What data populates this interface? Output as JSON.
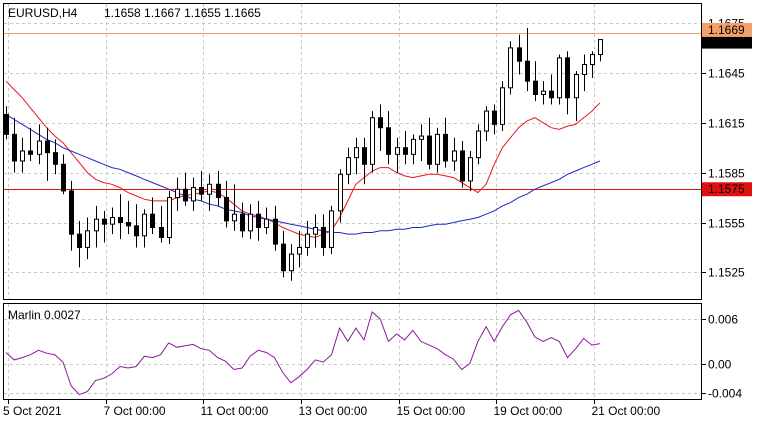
{
  "header": {
    "symbol": "EURUSD,H4",
    "ohlc": "1.1658 1.1667 1.1655 1.1665"
  },
  "indicator": {
    "label": "Marlin 0.0027"
  },
  "price_tags": {
    "current": "1.1665",
    "resistance": "1.1669",
    "support": "1.1575"
  },
  "colors": {
    "background": "#ffffff",
    "grid": "#c8c8c8",
    "candle": "#000000",
    "ma_fast": "#e8161e",
    "ma_slow": "#1b28c8",
    "resistance_line": "#f4a06a",
    "support_line": "#e01010",
    "oscillator": "#8b1a9b"
  },
  "chart_data": [
    {
      "type": "candlestick",
      "title": "EURUSD,H4",
      "y_ticks": [
        "1.1675",
        "1.1645",
        "1.1615",
        "1.1585",
        "1.1555",
        "1.1525"
      ],
      "ylim": [
        1.1509,
        1.1687
      ],
      "x_ticks": [
        "5 Oct 2021",
        "7 Oct 00:00",
        "11 Oct 00:00",
        "13 Oct 00:00",
        "15 Oct 00:00",
        "19 Oct 00:00",
        "21 Oct 00:00"
      ],
      "hlines": [
        {
          "name": "resistance",
          "value": 1.1669
        },
        {
          "name": "support",
          "value": 1.1575
        }
      ],
      "candles": [
        [
          1.162,
          1.1625,
          1.1605,
          1.1608
        ],
        [
          1.1608,
          1.1618,
          1.1585,
          1.1592
        ],
        [
          1.1592,
          1.1606,
          1.1585,
          1.1598
        ],
        [
          1.1598,
          1.1612,
          1.1592,
          1.1596
        ],
        [
          1.1596,
          1.1614,
          1.159,
          1.1604
        ],
        [
          1.1604,
          1.1612,
          1.158,
          1.1597
        ],
        [
          1.1597,
          1.1605,
          1.1584,
          1.159
        ],
        [
          1.159,
          1.1596,
          1.1572,
          1.1574
        ],
        [
          1.1574,
          1.158,
          1.1538,
          1.1548
        ],
        [
          1.1548,
          1.1556,
          1.1528,
          1.154
        ],
        [
          1.154,
          1.1558,
          1.1533,
          1.155
        ],
        [
          1.155,
          1.1565,
          1.154,
          1.1557
        ],
        [
          1.1557,
          1.1562,
          1.1543,
          1.1554
        ],
        [
          1.1554,
          1.1564,
          1.1548,
          1.1558
        ],
        [
          1.1558,
          1.1572,
          1.1545,
          1.1555
        ],
        [
          1.1555,
          1.1568,
          1.1548,
          1.1553
        ],
        [
          1.1553,
          1.1566,
          1.154,
          1.1547
        ],
        [
          1.1547,
          1.1563,
          1.154,
          1.156
        ],
        [
          1.156,
          1.157,
          1.1548,
          1.1552
        ],
        [
          1.1552,
          1.1565,
          1.1543,
          1.1546
        ],
        [
          1.1546,
          1.1574,
          1.1542,
          1.157
        ],
        [
          1.157,
          1.1582,
          1.1562,
          1.1575
        ],
        [
          1.1575,
          1.1585,
          1.1565,
          1.1568
        ],
        [
          1.1568,
          1.1582,
          1.1562,
          1.1576
        ],
        [
          1.1576,
          1.1586,
          1.1568,
          1.1572
        ],
        [
          1.1572,
          1.1584,
          1.1562,
          1.1578
        ],
        [
          1.1578,
          1.1586,
          1.1565,
          1.157
        ],
        [
          1.157,
          1.158,
          1.1552,
          1.1556
        ],
        [
          1.1556,
          1.1578,
          1.155,
          1.156
        ],
        [
          1.156,
          1.1567,
          1.1546,
          1.155
        ],
        [
          1.155,
          1.1566,
          1.1545,
          1.156
        ],
        [
          1.156,
          1.1568,
          1.1544,
          1.1552
        ],
        [
          1.1552,
          1.1564,
          1.1548,
          1.1557
        ],
        [
          1.1557,
          1.1565,
          1.1538,
          1.1542
        ],
        [
          1.1542,
          1.155,
          1.1522,
          1.1526
        ],
        [
          1.1526,
          1.1542,
          1.152,
          1.1536
        ],
        [
          1.1536,
          1.155,
          1.1528,
          1.154
        ],
        [
          1.154,
          1.1556,
          1.1535,
          1.1548
        ],
        [
          1.1548,
          1.156,
          1.154,
          1.1552
        ],
        [
          1.1552,
          1.156,
          1.1535,
          1.154
        ],
        [
          1.154,
          1.1565,
          1.1536,
          1.1562
        ],
        [
          1.1562,
          1.1587,
          1.1555,
          1.1584
        ],
        [
          1.1584,
          1.16,
          1.1578,
          1.1594
        ],
        [
          1.1594,
          1.1606,
          1.1584,
          1.16
        ],
        [
          1.16,
          1.1606,
          1.1578,
          1.159
        ],
        [
          1.159,
          1.1622,
          1.1585,
          1.1618
        ],
        [
          1.1618,
          1.1626,
          1.1598,
          1.1612
        ],
        [
          1.1612,
          1.1622,
          1.159,
          1.1596
        ],
        [
          1.1596,
          1.1606,
          1.1585,
          1.16
        ],
        [
          1.16,
          1.161,
          1.159,
          1.1596
        ],
        [
          1.1596,
          1.1608,
          1.159,
          1.1605
        ],
        [
          1.1605,
          1.1614,
          1.1592,
          1.1607
        ],
        [
          1.1607,
          1.1618,
          1.1587,
          1.159
        ],
        [
          1.159,
          1.1612,
          1.1585,
          1.1608
        ],
        [
          1.1608,
          1.1618,
          1.1588,
          1.1592
        ],
        [
          1.1592,
          1.1606,
          1.1586,
          1.1598
        ],
        [
          1.1598,
          1.1604,
          1.1576,
          1.158
        ],
        [
          1.158,
          1.1598,
          1.1574,
          1.1594
        ],
        [
          1.1594,
          1.1614,
          1.159,
          1.161
        ],
        [
          1.161,
          1.1625,
          1.1604,
          1.1622
        ],
        [
          1.1622,
          1.1626,
          1.1608,
          1.1614
        ],
        [
          1.1614,
          1.164,
          1.161,
          1.1636
        ],
        [
          1.1636,
          1.1664,
          1.1632,
          1.166
        ],
        [
          1.166,
          1.1668,
          1.1644,
          1.1652
        ],
        [
          1.1652,
          1.1672,
          1.1634,
          1.164
        ],
        [
          1.164,
          1.1652,
          1.1628,
          1.1632
        ],
        [
          1.1632,
          1.164,
          1.1626,
          1.1634
        ],
        [
          1.1634,
          1.1644,
          1.1626,
          1.163
        ],
        [
          1.163,
          1.1656,
          1.1626,
          1.1654
        ],
        [
          1.1654,
          1.1658,
          1.162,
          1.163
        ],
        [
          1.163,
          1.1646,
          1.1616,
          1.1644
        ],
        [
          1.1644,
          1.1656,
          1.1634,
          1.165
        ],
        [
          1.165,
          1.1658,
          1.1642,
          1.1656
        ],
        [
          1.1656,
          1.1664,
          1.1652,
          1.1665
        ]
      ],
      "series": [
        {
          "name": "fast MA",
          "values": [
            1.164,
            1.1635,
            1.163,
            1.1624,
            1.1618,
            1.1612,
            1.1607,
            1.1603,
            1.1597,
            1.1591,
            1.1585,
            1.1581,
            1.1579,
            1.1578,
            1.1576,
            1.1573,
            1.1571,
            1.1569,
            1.1568,
            1.1568,
            1.1568,
            1.157,
            1.1571,
            1.1572,
            1.1573,
            1.1574,
            1.1573,
            1.157,
            1.1566,
            1.1562,
            1.156,
            1.1559,
            1.1557,
            1.1555,
            1.1552,
            1.155,
            1.1548,
            1.1547,
            1.1546,
            1.1548,
            1.155,
            1.1558,
            1.1568,
            1.1578,
            1.1582,
            1.1586,
            1.1588,
            1.1588,
            1.1585,
            1.1583,
            1.1582,
            1.1583,
            1.1584,
            1.1584,
            1.1583,
            1.1582,
            1.1579,
            1.1576,
            1.1573,
            1.1578,
            1.159,
            1.16,
            1.1606,
            1.1612,
            1.1616,
            1.1618,
            1.1615,
            1.1612,
            1.1611,
            1.1613,
            1.1614,
            1.1618,
            1.1622,
            1.1627
          ]
        },
        {
          "name": "slow MA",
          "values": [
            1.162,
            1.1617,
            1.1614,
            1.1611,
            1.1608,
            1.1605,
            1.1603,
            1.16,
            1.1598,
            1.1596,
            1.1594,
            1.1592,
            1.159,
            1.1588,
            1.1587,
            1.1585,
            1.1583,
            1.1581,
            1.1579,
            1.1577,
            1.1575,
            1.1573,
            1.1571,
            1.1569,
            1.1568,
            1.1566,
            1.1565,
            1.1563,
            1.1562,
            1.1561,
            1.1559,
            1.1558,
            1.1557,
            1.1556,
            1.1555,
            1.1554,
            1.1553,
            1.1552,
            1.1551,
            1.155,
            1.1549,
            1.1549,
            1.1548,
            1.1548,
            1.1549,
            1.1549,
            1.155,
            1.155,
            1.1551,
            1.1551,
            1.1552,
            1.1552,
            1.1553,
            1.1554,
            1.1554,
            1.1555,
            1.1556,
            1.1557,
            1.1558,
            1.156,
            1.1562,
            1.1565,
            1.1567,
            1.157,
            1.1572,
            1.1575,
            1.1577,
            1.1579,
            1.1581,
            1.1584,
            1.1586,
            1.1588,
            1.159,
            1.1592
          ]
        }
      ]
    },
    {
      "type": "line",
      "title": "Marlin 0.0027",
      "y_ticks": [
        "0.006",
        "0.00",
        "-0.004"
      ],
      "ylim": [
        -0.0048,
        0.0082
      ],
      "series": [
        {
          "name": "Marlin",
          "values": [
            0.0015,
            0.0005,
            0.0008,
            0.0012,
            0.0018,
            0.0014,
            0.0012,
            0.0002,
            -0.003,
            -0.0042,
            -0.0038,
            -0.0023,
            -0.002,
            -0.0014,
            -0.0004,
            -0.0006,
            -0.0004,
            0.001,
            0.0008,
            0.0012,
            0.0028,
            0.0022,
            0.0024,
            0.0026,
            0.002,
            0.0018,
            0.0008,
            0.0003,
            -0.0008,
            -0.0006,
            0.001,
            0.0018,
            0.0015,
            0.0008,
            -0.0012,
            -0.0026,
            -0.0018,
            -0.0008,
            0.0005,
            0.0002,
            0.0012,
            0.0048,
            0.003,
            0.0048,
            0.0032,
            0.007,
            0.006,
            0.003,
            0.004,
            0.0032,
            0.0045,
            0.003,
            0.0025,
            0.002,
            0.0012,
            0.0006,
            -0.0008,
            0.0,
            0.003,
            0.005,
            0.003,
            0.005,
            0.0066,
            0.0072,
            0.0056,
            0.0036,
            0.003,
            0.0035,
            0.003,
            0.0008,
            0.002,
            0.0034,
            0.0025,
            0.0027
          ]
        }
      ]
    }
  ]
}
